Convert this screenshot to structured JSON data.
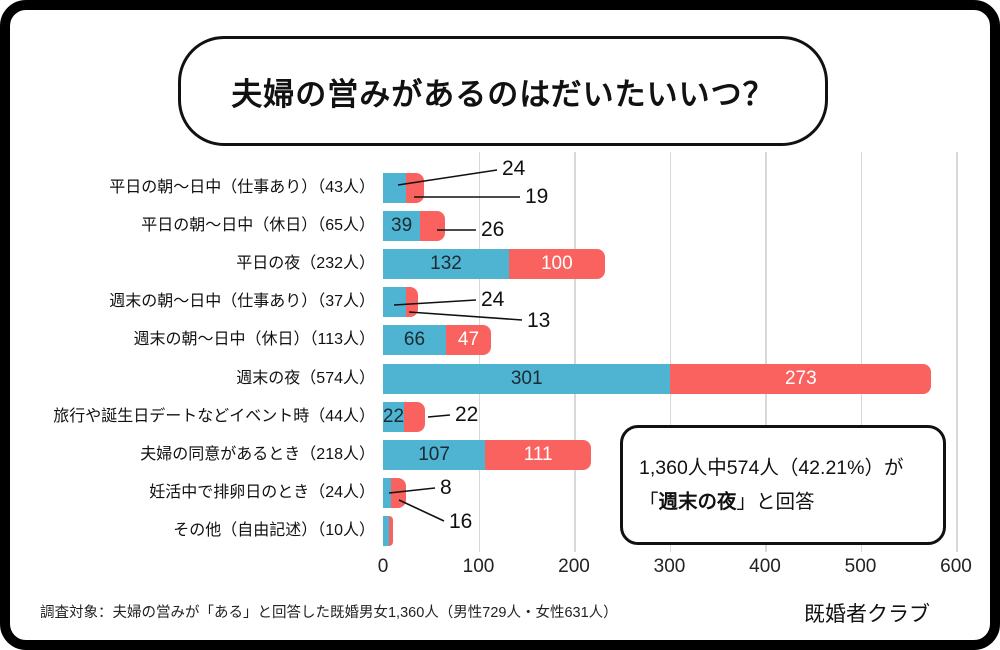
{
  "header": {
    "title": "夫婦の営みがあるのはだいたいいつ？"
  },
  "annotation": {
    "line1": "1,360人中574人（42.21%）が",
    "line2_pre": "「",
    "line2_bold": "週末の夜",
    "line2_post": "」と回答"
  },
  "footer": {
    "footnote": "調査対象：夫婦の営みが「ある」と回答した既婚男女1,360人（男性729人・女性631人）",
    "brand": "既婚者クラブ"
  },
  "colors": {
    "blue": "#4fb3d2",
    "red": "#f9625f",
    "grid": "#d8d8d8",
    "blue_label_text": "#1c2a31",
    "red_label_text": "#ffffff"
  },
  "chart_data": {
    "type": "bar",
    "orientation": "horizontal",
    "stacked": true,
    "title": "夫婦の営みがあるのはだいたいいつ？",
    "categories": [
      "平日の朝～日中（仕事あり）（43人）",
      "平日の朝～日中（休日）（65人）",
      "平日の夜（232人）",
      "週末の朝～日中（仕事あり）（37人）",
      "週末の朝～日中（休日）（113人）",
      "週末の夜（574人）",
      "旅行や誕生日デートなどイベント時（44人）",
      "夫婦の同意があるとき（218人）",
      "妊活中で排卵日のとき（24人）",
      "その他（自由記述）（10人）"
    ],
    "series": [
      {
        "name": "blue",
        "values": [
          24,
          39,
          132,
          24,
          66,
          301,
          22,
          107,
          8,
          6
        ]
      },
      {
        "name": "red",
        "values": [
          19,
          26,
          100,
          13,
          47,
          273,
          22,
          111,
          16,
          4
        ]
      }
    ],
    "totals": [
      43,
      65,
      232,
      37,
      113,
      574,
      44,
      218,
      24,
      10
    ],
    "xlim": [
      0,
      600
    ],
    "xticks": [
      0,
      100,
      200,
      300,
      400,
      500,
      600
    ],
    "grid": true,
    "legend": false,
    "label_layout": [
      {
        "blue": "callout",
        "red": "callout"
      },
      {
        "blue": "inside",
        "red": "callout"
      },
      {
        "blue": "inside",
        "red": "inside"
      },
      {
        "blue": "callout",
        "red": "callout"
      },
      {
        "blue": "inside",
        "red": "inside"
      },
      {
        "blue": "inside",
        "red": "inside"
      },
      {
        "blue": "inside",
        "red": "callout"
      },
      {
        "blue": "inside",
        "red": "inside"
      },
      {
        "blue": "callout",
        "red": "callout"
      },
      {
        "blue": "none",
        "red": "none"
      }
    ]
  }
}
